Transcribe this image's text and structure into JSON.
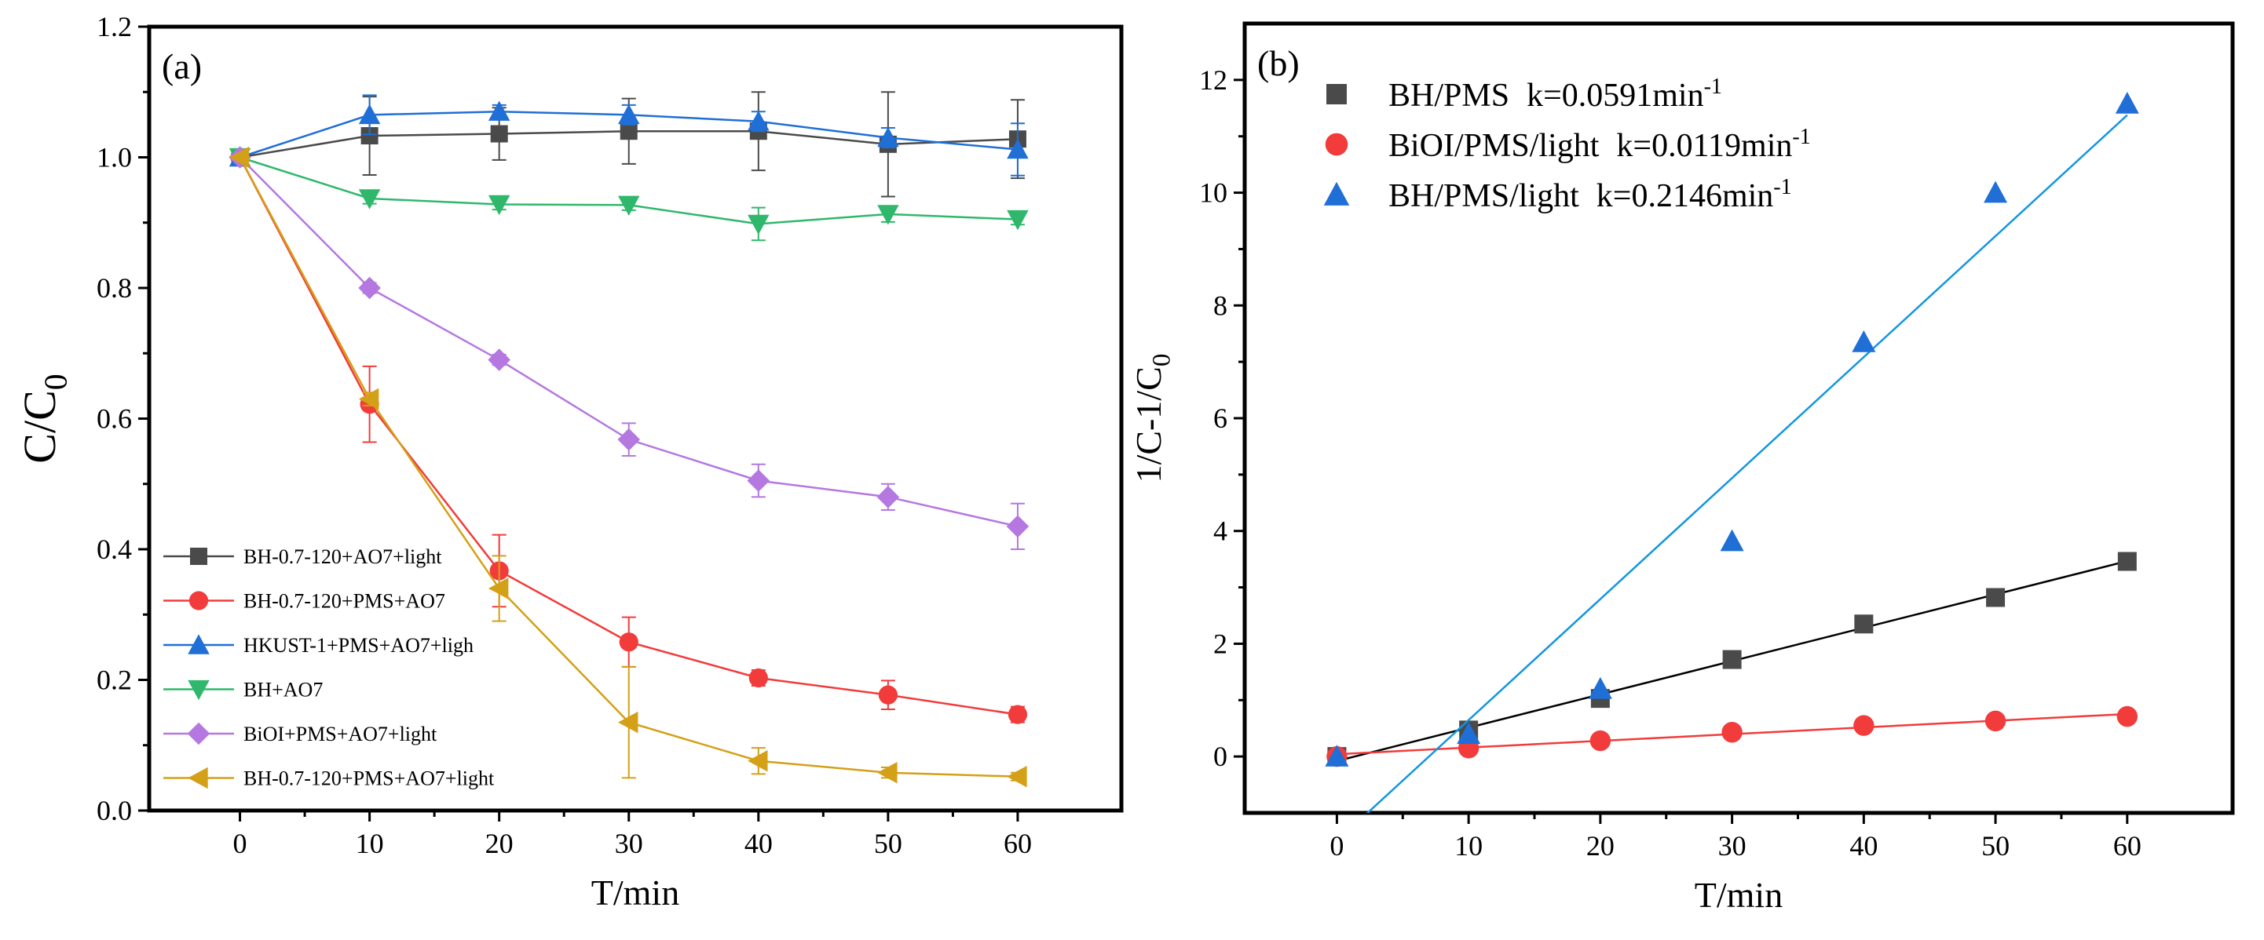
{
  "chart_data": [
    {
      "panel": "(a)",
      "type": "line",
      "xlabel": "T/min",
      "ylabel": "C/C0",
      "ylabel_main": "C/C",
      "ylabel_sub": "0",
      "xlim": [
        -7,
        68
      ],
      "ylim": [
        0.0,
        1.2
      ],
      "xticks": [
        0,
        10,
        20,
        30,
        40,
        50,
        60
      ],
      "yticks": [
        0.0,
        0.2,
        0.4,
        0.6,
        0.8,
        1.0,
        1.2
      ],
      "legend_position": "lower-left",
      "grid": false,
      "x": [
        0,
        10,
        20,
        30,
        40,
        50,
        60
      ],
      "series": [
        {
          "name": "BH-0.7-120+AO7+light",
          "color": "#4a4a4a",
          "marker": "square",
          "values": [
            1.0,
            1.033,
            1.036,
            1.04,
            1.04,
            1.02,
            1.028
          ],
          "errors": [
            0,
            0.06,
            0.04,
            0.05,
            0.06,
            0.08,
            0.06
          ]
        },
        {
          "name": "BH-0.7-120+PMS+AO7",
          "color": "#f23b3b",
          "marker": "circle",
          "values": [
            1.0,
            0.622,
            0.367,
            0.258,
            0.203,
            0.177,
            0.147
          ],
          "errors": [
            0,
            0.058,
            0.055,
            0.038,
            0.012,
            0.022,
            0.012
          ]
        },
        {
          "name": "HKUST-1+PMS+AO7+ligh",
          "color": "#1f6fd6",
          "marker": "triangle-up",
          "values": [
            1.0,
            1.065,
            1.07,
            1.065,
            1.055,
            1.03,
            1.012
          ],
          "errors": [
            0,
            0.03,
            0.01,
            0.015,
            0.015,
            0.015,
            0.04
          ]
        },
        {
          "name": "BH+AO7",
          "color": "#2fb86b",
          "marker": "triangle-down",
          "values": [
            1.0,
            0.937,
            0.928,
            0.927,
            0.898,
            0.913,
            0.905
          ],
          "errors": [
            0,
            0.008,
            0.008,
            0.008,
            0.025,
            0.012,
            0.008
          ]
        },
        {
          "name": "BiOI+PMS+AO7+light",
          "color": "#b478e0",
          "marker": "diamond",
          "values": [
            1.0,
            0.8,
            0.69,
            0.568,
            0.505,
            0.48,
            0.435
          ],
          "errors": [
            0,
            0.008,
            0.008,
            0.025,
            0.025,
            0.02,
            0.035
          ]
        },
        {
          "name": "BH-0.7-120+PMS+AO7+light",
          "color": "#d4a017",
          "marker": "triangle-left",
          "values": [
            1.0,
            0.63,
            0.34,
            0.135,
            0.076,
            0.058,
            0.052
          ],
          "errors": [
            0,
            0.01,
            0.05,
            0.085,
            0.02,
            0.008,
            0.006
          ]
        }
      ]
    },
    {
      "panel": "(b)",
      "type": "scatter",
      "xlabel": "T/min",
      "ylabel": "1/C-1/C0",
      "ylabel_main": "1/C-1/C",
      "ylabel_sub": "0",
      "xlim": [
        -7,
        68
      ],
      "ylim": [
        -1,
        13
      ],
      "xticks": [
        0,
        10,
        20,
        30,
        40,
        50,
        60
      ],
      "yticks": [
        0,
        2,
        4,
        6,
        8,
        10,
        12
      ],
      "legend_position": "top-left",
      "grid": false,
      "x": [
        0,
        10,
        20,
        30,
        40,
        50,
        60
      ],
      "series": [
        {
          "name": "BH/PMS",
          "k_label": "k=0.0591min",
          "k_sup": "-1",
          "color": "#4a4a4a",
          "marker": "square",
          "values": [
            0.0,
            0.47,
            1.03,
            1.72,
            2.35,
            2.82,
            3.46
          ],
          "fit": {
            "slope": 0.0591,
            "intercept": -0.08,
            "x_range": [
              0,
              60
            ],
            "color": "#000000"
          }
        },
        {
          "name": "BiOI/PMS/light",
          "k_label": "k=0.0119min",
          "k_sup": "-1",
          "color": "#f23b3b",
          "marker": "circle",
          "values": [
            0.0,
            0.15,
            0.28,
            0.43,
            0.55,
            0.63,
            0.71
          ],
          "fit": {
            "slope": 0.0119,
            "intercept": 0.04,
            "x_range": [
              0,
              60
            ],
            "color": "#f23b3b"
          }
        },
        {
          "name": "BH/PMS/light",
          "k_label": "k=0.2146min",
          "k_sup": "-1",
          "color": "#1f6fd6",
          "marker": "triangle-up",
          "values": [
            0.0,
            0.4,
            1.2,
            3.82,
            7.35,
            10.0,
            11.58
          ],
          "fit": {
            "slope": 0.2146,
            "intercept": -1.5,
            "x_range": [
              0,
              60
            ],
            "color": "#1296e0"
          }
        }
      ]
    }
  ]
}
